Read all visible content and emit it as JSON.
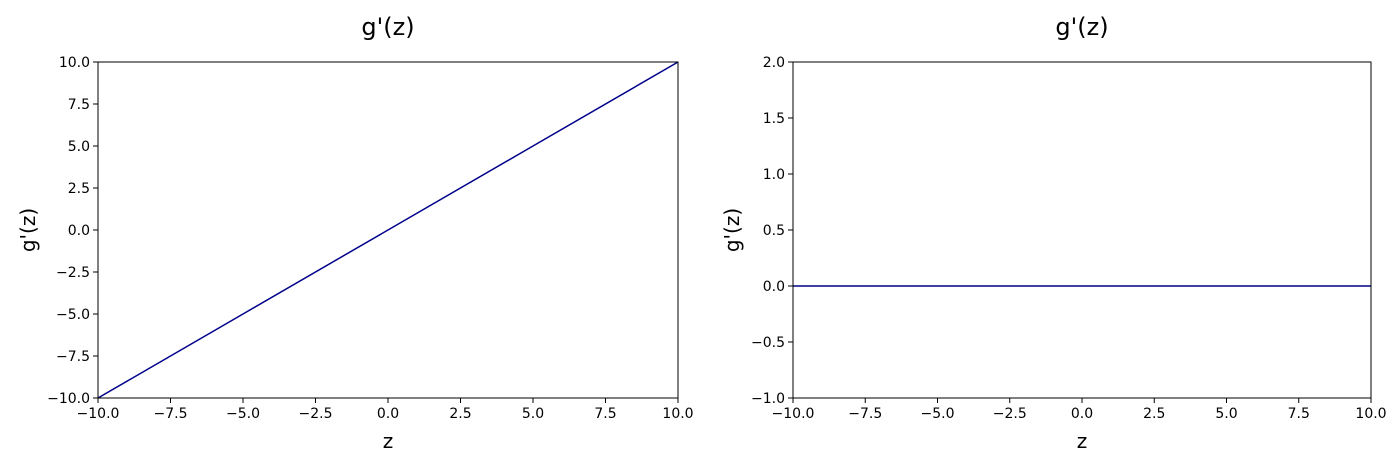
{
  "chart_data": [
    {
      "type": "line",
      "title": "g'(z)",
      "xlabel": "z",
      "ylabel": "g'(z)",
      "xlim": [
        -10,
        10
      ],
      "ylim": [
        -10,
        10
      ],
      "xticks": [
        "−10.0",
        "−7.5",
        "−5.0",
        "−2.5",
        "0.0",
        "2.5",
        "5.0",
        "7.5",
        "10.0"
      ],
      "yticks": [
        "−10.0",
        "−7.5",
        "−5.0",
        "−2.5",
        "0.0",
        "2.5",
        "5.0",
        "7.5",
        "10.0"
      ],
      "grid": false,
      "series": [
        {
          "color": "#00008b",
          "x": [
            -10,
            -5,
            0,
            5,
            10
          ],
          "y": [
            -10,
            -5,
            0,
            5,
            10
          ]
        }
      ]
    },
    {
      "type": "line",
      "title": "g'(z)",
      "xlabel": "z",
      "ylabel": "g'(z)",
      "xlim": [
        -10,
        10
      ],
      "ylim": [
        -1,
        2
      ],
      "xticks": [
        "−10.0",
        "−7.5",
        "−5.0",
        "−2.5",
        "0.0",
        "2.5",
        "5.0",
        "7.5",
        "10.0"
      ],
      "yticks": [
        "−1.0",
        "−0.5",
        "0.0",
        "0.5",
        "1.0",
        "1.5",
        "2.0"
      ],
      "grid": false,
      "series": [
        {
          "color": "#00008b",
          "x": [
            -10,
            -5,
            0,
            5,
            10
          ],
          "y": [
            0,
            0,
            0,
            0,
            0
          ]
        }
      ]
    }
  ]
}
